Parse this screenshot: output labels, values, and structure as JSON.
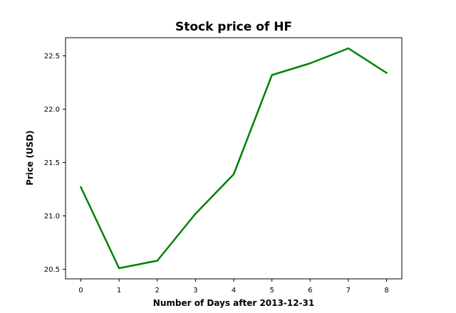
{
  "chart_data": {
    "type": "line",
    "title": "Stock price of HF",
    "xlabel": "Number of Days after 2013-12-31",
    "ylabel": "Price (USD)",
    "x": [
      0,
      1,
      2,
      3,
      4,
      5,
      6,
      7,
      8
    ],
    "series": [
      {
        "name": "",
        "color": "#008000",
        "values": [
          21.27,
          20.51,
          20.58,
          21.02,
          21.39,
          22.32,
          22.43,
          22.57,
          22.34
        ]
      }
    ],
    "xticks": [
      0,
      1,
      2,
      3,
      4,
      5,
      6,
      7,
      8
    ],
    "xtick_labels": [
      "0",
      "1",
      "2",
      "3",
      "4",
      "5",
      "6",
      "7",
      "8"
    ],
    "yticks": [
      20.5,
      21.0,
      21.5,
      22.0,
      22.5
    ],
    "ytick_labels": [
      "20.5",
      "21.0",
      "21.5",
      "22.0",
      "22.5"
    ],
    "xlim": [
      -0.4,
      8.4
    ],
    "ylim": [
      20.41,
      22.67
    ],
    "grid": false,
    "legend": false
  }
}
